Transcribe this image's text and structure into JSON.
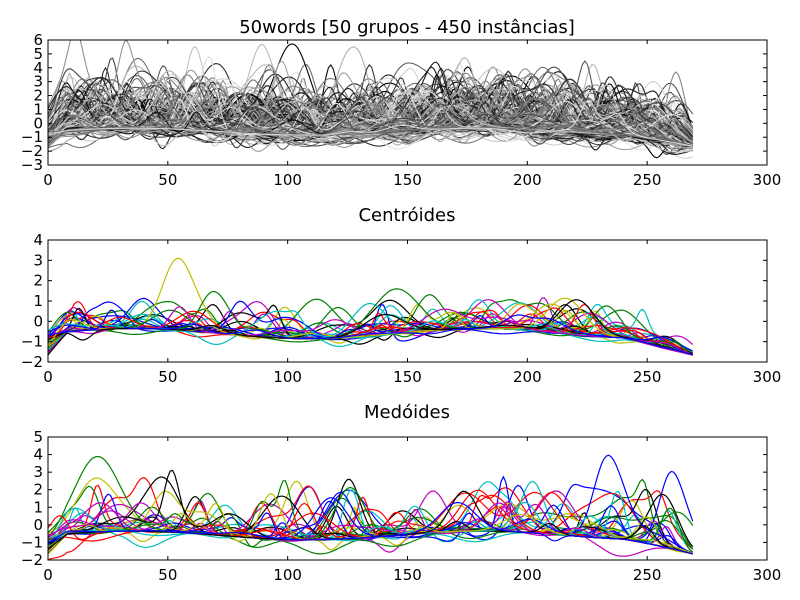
{
  "chart_data": [
    {
      "type": "line",
      "title": "50words [50 grupos - 450 instâncias]",
      "xlabel": "",
      "ylabel": "",
      "xlim": [
        0,
        300
      ],
      "ylim": [
        -3,
        6
      ],
      "xticks": [
        0,
        50,
        100,
        150,
        200,
        250,
        300
      ],
      "yticks": [
        -3,
        -2,
        -1,
        0,
        1,
        2,
        3,
        4,
        5,
        6
      ],
      "series_length": 270,
      "series_count_shown": 450,
      "color_scheme": "grayscale",
      "grid": false,
      "legend": "none"
    },
    {
      "type": "line",
      "title": "Centróides",
      "xlabel": "",
      "ylabel": "",
      "xlim": [
        0,
        300
      ],
      "ylim": [
        -2,
        4
      ],
      "xticks": [
        0,
        50,
        100,
        150,
        200,
        250,
        300
      ],
      "yticks": [
        -2,
        -1,
        0,
        1,
        2,
        3,
        4
      ],
      "series_length": 270,
      "series_count_shown": 50,
      "color_cycle": [
        "#0000ff",
        "#008000",
        "#ff0000",
        "#00bfbf",
        "#bf00bf",
        "#bfbf00",
        "#000000"
      ],
      "grid": false,
      "legend": "none"
    },
    {
      "type": "line",
      "title": "Medóides",
      "xlabel": "",
      "ylabel": "",
      "xlim": [
        0,
        300
      ],
      "ylim": [
        -2,
        5
      ],
      "xticks": [
        0,
        50,
        100,
        150,
        200,
        250,
        300
      ],
      "yticks": [
        -2,
        -1,
        0,
        1,
        2,
        3,
        4,
        5
      ],
      "series_length": 270,
      "series_count_shown": 50,
      "color_cycle": [
        "#0000ff",
        "#008000",
        "#ff0000",
        "#00bfbf",
        "#bf00bf",
        "#bfbf00",
        "#000000"
      ],
      "grid": false,
      "legend": "none"
    }
  ]
}
